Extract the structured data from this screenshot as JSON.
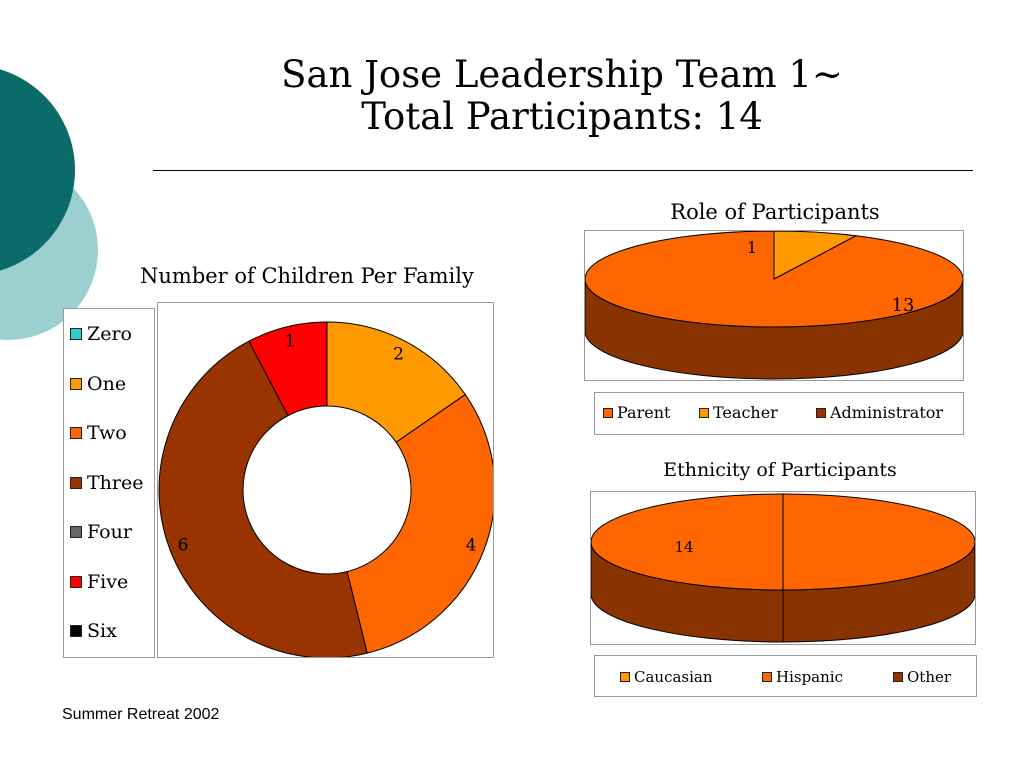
{
  "slide": {
    "title_line1": "San Jose Leadership Team 1~",
    "title_line2": "Total Participants: 14",
    "footer": "Summer Retreat 2002"
  },
  "colors": {
    "teal_dark": "#0b6b69",
    "teal_light": "#9ccfcf",
    "orange": "#ff6600",
    "light_orange": "#ff9900",
    "brown": "#993300",
    "brown_side": "#883300",
    "red": "#ff0000",
    "cyan": "#33cccc",
    "gray": "#666666",
    "black": "#000000"
  },
  "chart_data": [
    {
      "type": "pie",
      "subtype": "doughnut",
      "title": "Number of Children Per Family",
      "legend_position": "left",
      "categories": [
        "Zero",
        "One",
        "Two",
        "Three",
        "Four",
        "Five",
        "Six"
      ],
      "values": [
        0,
        2,
        4,
        6,
        0,
        1,
        0
      ],
      "colors": [
        "#33cccc",
        "#ff9900",
        "#ff6600",
        "#993300",
        "#666666",
        "#ff0000",
        "#000000"
      ]
    },
    {
      "type": "pie",
      "subtype": "3d",
      "title": "Role of Participants",
      "legend_position": "bottom",
      "categories": [
        "Parent",
        "Teacher",
        "Administrator"
      ],
      "values": [
        13,
        1,
        0
      ],
      "colors": [
        "#ff6600",
        "#ff9900",
        "#993300"
      ]
    },
    {
      "type": "pie",
      "subtype": "3d",
      "title": "Ethnicity of Participants",
      "legend_position": "bottom",
      "categories": [
        "Caucasian",
        "Hispanic",
        "Other"
      ],
      "values": [
        0,
        14,
        0
      ],
      "colors": [
        "#ff9900",
        "#ff6600",
        "#993300"
      ]
    }
  ]
}
